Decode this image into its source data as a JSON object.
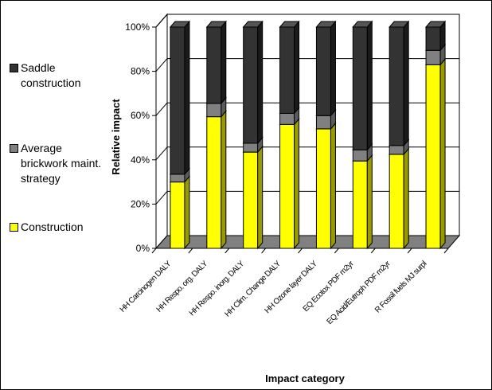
{
  "chart_data": {
    "type": "bar",
    "stacked": true,
    "three_d": true,
    "ylabel": "Relative impact",
    "xlabel": "Impact category",
    "ylim": [
      0,
      100
    ],
    "yticks": [
      "0%",
      "20%",
      "40%",
      "60%",
      "80%",
      "100%"
    ],
    "categories": [
      "HH Carcinogen DALY",
      "HH Respo. org. DALY",
      "HH Respo. inorg. DALY",
      "HH Clim. Change DALY",
      "HH Ozone layer DALY",
      "EQ Ecotox PDF m2yr",
      "EQ Acid/Eutroph PDF m2yr",
      "R Fossil fuels MJ surpl"
    ],
    "series": [
      {
        "name": "Construction",
        "color": "#ffff00",
        "side": "#999900",
        "top": "#ffff80",
        "values": [
          30,
          59.5,
          43.5,
          56,
          54,
          39.5,
          42.5,
          83
        ]
      },
      {
        "name": "Average brickwork maint. strategy",
        "color": "#808080",
        "side": "#5a5a5a",
        "top": "#a6a6a6",
        "values": [
          3.5,
          6,
          4,
          5,
          6,
          5,
          4,
          6.5
        ]
      },
      {
        "name": "Saddle construction",
        "color": "#333333",
        "side": "#1a1a1a",
        "top": "#555555",
        "values": [
          66.5,
          34.5,
          52.5,
          39,
          40,
          55.5,
          53.5,
          10.5
        ]
      }
    ],
    "legend": [
      {
        "name": "Saddle construction",
        "color": "#333333"
      },
      {
        "name": "Average brickwork maint. strategy",
        "color": "#808080"
      },
      {
        "name": "Construction",
        "color": "#ffff00"
      }
    ],
    "legend_position": "left",
    "grid": true
  }
}
